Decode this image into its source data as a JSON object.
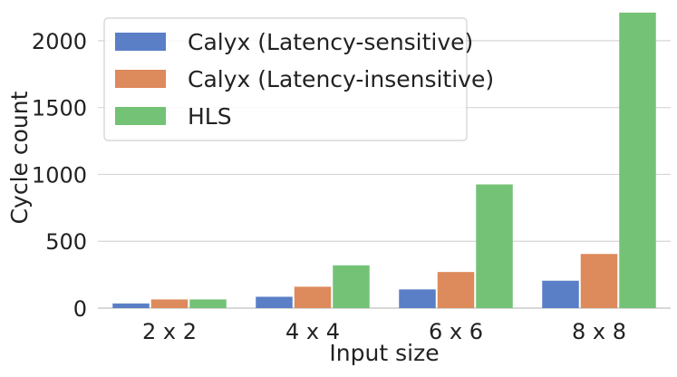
{
  "chart_data": {
    "type": "bar",
    "title": "",
    "xlabel": "Input size",
    "ylabel": "Cycle count",
    "categories": [
      "2 x 2",
      "4 x 4",
      "6 x 6",
      "8 x 8"
    ],
    "series": [
      {
        "name": "Calyx (Latency-sensitive)",
        "color": "#5a7fc6",
        "values": [
          35,
          85,
          140,
          205
        ]
      },
      {
        "name": "Calyx (Latency-insensitive)",
        "color": "#dd8a5c",
        "values": [
          65,
          160,
          270,
          405
        ]
      },
      {
        "name": "HLS",
        "color": "#74c276",
        "values": [
          65,
          320,
          925,
          2210
        ]
      }
    ],
    "ylim": [
      0,
      2250
    ],
    "yticks": [
      0,
      500,
      1000,
      1500,
      2000
    ],
    "grid": true,
    "legend_position": "top-left"
  }
}
